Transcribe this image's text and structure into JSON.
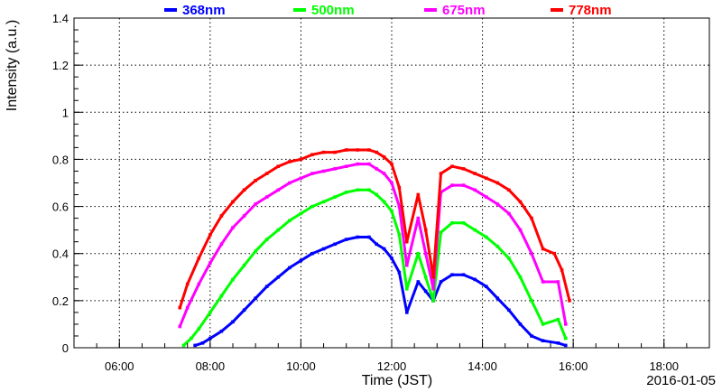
{
  "chart_data": {
    "type": "scatter",
    "title": "",
    "xlabel": "Time (JST)",
    "ylabel": "Intensity (a.u.)",
    "date": "2016-01-05",
    "xlim": [
      "05:00",
      "19:00"
    ],
    "ylim": [
      0,
      1.4
    ],
    "x_ticks": [
      "06:00",
      "08:00",
      "10:00",
      "12:00",
      "14:00",
      "16:00",
      "18:00"
    ],
    "y_ticks": [
      "0",
      "0.2",
      "0.4",
      "0.6",
      "0.8",
      "1",
      "1.2",
      "1.4"
    ],
    "grid": true,
    "legend_position": "top",
    "series": [
      {
        "name": "368nm",
        "color": "#0000ff",
        "points": [
          [
            "07:40",
            0.01
          ],
          [
            "07:50",
            0.02
          ],
          [
            "08:00",
            0.04
          ],
          [
            "08:15",
            0.07
          ],
          [
            "08:30",
            0.11
          ],
          [
            "08:45",
            0.16
          ],
          [
            "09:00",
            0.21
          ],
          [
            "09:15",
            0.26
          ],
          [
            "09:30",
            0.3
          ],
          [
            "09:45",
            0.34
          ],
          [
            "10:00",
            0.37
          ],
          [
            "10:15",
            0.4
          ],
          [
            "10:30",
            0.42
          ],
          [
            "10:45",
            0.44
          ],
          [
            "11:00",
            0.46
          ],
          [
            "11:15",
            0.47
          ],
          [
            "11:30",
            0.47
          ],
          [
            "11:40",
            0.44
          ],
          [
            "11:50",
            0.42
          ],
          [
            "12:00",
            0.38
          ],
          [
            "12:10",
            0.32
          ],
          [
            "12:20",
            0.15
          ],
          [
            "12:35",
            0.28
          ],
          [
            "12:45",
            0.24
          ],
          [
            "12:55",
            0.2
          ],
          [
            "13:05",
            0.28
          ],
          [
            "13:20",
            0.31
          ],
          [
            "13:35",
            0.31
          ],
          [
            "13:50",
            0.29
          ],
          [
            "14:05",
            0.26
          ],
          [
            "14:20",
            0.21
          ],
          [
            "14:35",
            0.16
          ],
          [
            "14:50",
            0.1
          ],
          [
            "15:05",
            0.05
          ],
          [
            "15:20",
            0.03
          ],
          [
            "15:40",
            0.02
          ],
          [
            "15:50",
            0.01
          ]
        ]
      },
      {
        "name": "500nm",
        "color": "#00ff00",
        "points": [
          [
            "07:25",
            0.01
          ],
          [
            "07:35",
            0.04
          ],
          [
            "07:45",
            0.08
          ],
          [
            "08:00",
            0.15
          ],
          [
            "08:15",
            0.22
          ],
          [
            "08:30",
            0.29
          ],
          [
            "08:45",
            0.35
          ],
          [
            "09:00",
            0.41
          ],
          [
            "09:15",
            0.46
          ],
          [
            "09:30",
            0.5
          ],
          [
            "09:45",
            0.54
          ],
          [
            "10:00",
            0.57
          ],
          [
            "10:15",
            0.6
          ],
          [
            "10:30",
            0.62
          ],
          [
            "10:45",
            0.64
          ],
          [
            "11:00",
            0.66
          ],
          [
            "11:15",
            0.67
          ],
          [
            "11:30",
            0.67
          ],
          [
            "11:40",
            0.65
          ],
          [
            "11:50",
            0.62
          ],
          [
            "12:00",
            0.58
          ],
          [
            "12:10",
            0.48
          ],
          [
            "12:20",
            0.25
          ],
          [
            "12:35",
            0.4
          ],
          [
            "12:45",
            0.3
          ],
          [
            "12:55",
            0.2
          ],
          [
            "13:05",
            0.49
          ],
          [
            "13:20",
            0.53
          ],
          [
            "13:35",
            0.53
          ],
          [
            "13:50",
            0.5
          ],
          [
            "14:05",
            0.47
          ],
          [
            "14:20",
            0.43
          ],
          [
            "14:35",
            0.38
          ],
          [
            "14:50",
            0.3
          ],
          [
            "15:05",
            0.2
          ],
          [
            "15:20",
            0.1
          ],
          [
            "15:40",
            0.12
          ],
          [
            "15:50",
            0.04
          ]
        ]
      },
      {
        "name": "675nm",
        "color": "#ff00ff",
        "points": [
          [
            "07:20",
            0.09
          ],
          [
            "07:30",
            0.17
          ],
          [
            "07:45",
            0.27
          ],
          [
            "08:00",
            0.36
          ],
          [
            "08:15",
            0.44
          ],
          [
            "08:30",
            0.51
          ],
          [
            "08:45",
            0.56
          ],
          [
            "09:00",
            0.61
          ],
          [
            "09:15",
            0.64
          ],
          [
            "09:30",
            0.67
          ],
          [
            "09:45",
            0.7
          ],
          [
            "10:00",
            0.72
          ],
          [
            "10:15",
            0.74
          ],
          [
            "10:30",
            0.75
          ],
          [
            "10:45",
            0.76
          ],
          [
            "11:00",
            0.77
          ],
          [
            "11:15",
            0.78
          ],
          [
            "11:30",
            0.78
          ],
          [
            "11:40",
            0.76
          ],
          [
            "11:50",
            0.74
          ],
          [
            "12:00",
            0.7
          ],
          [
            "12:10",
            0.6
          ],
          [
            "12:20",
            0.35
          ],
          [
            "12:35",
            0.55
          ],
          [
            "12:45",
            0.4
          ],
          [
            "12:55",
            0.25
          ],
          [
            "13:05",
            0.66
          ],
          [
            "13:20",
            0.69
          ],
          [
            "13:35",
            0.69
          ],
          [
            "13:50",
            0.67
          ],
          [
            "14:05",
            0.64
          ],
          [
            "14:20",
            0.61
          ],
          [
            "14:35",
            0.57
          ],
          [
            "14:50",
            0.5
          ],
          [
            "15:05",
            0.4
          ],
          [
            "15:20",
            0.28
          ],
          [
            "15:40",
            0.28
          ],
          [
            "15:50",
            0.1
          ]
        ]
      },
      {
        "name": "778nm",
        "color": "#ff0000",
        "points": [
          [
            "07:20",
            0.17
          ],
          [
            "07:30",
            0.27
          ],
          [
            "07:45",
            0.38
          ],
          [
            "08:00",
            0.48
          ],
          [
            "08:15",
            0.56
          ],
          [
            "08:30",
            0.62
          ],
          [
            "08:45",
            0.67
          ],
          [
            "09:00",
            0.71
          ],
          [
            "09:15",
            0.74
          ],
          [
            "09:30",
            0.77
          ],
          [
            "09:45",
            0.79
          ],
          [
            "10:00",
            0.8
          ],
          [
            "10:15",
            0.82
          ],
          [
            "10:30",
            0.83
          ],
          [
            "10:45",
            0.83
          ],
          [
            "11:00",
            0.84
          ],
          [
            "11:15",
            0.84
          ],
          [
            "11:30",
            0.84
          ],
          [
            "11:40",
            0.83
          ],
          [
            "11:50",
            0.81
          ],
          [
            "12:00",
            0.78
          ],
          [
            "12:10",
            0.68
          ],
          [
            "12:20",
            0.45
          ],
          [
            "12:35",
            0.65
          ],
          [
            "12:45",
            0.5
          ],
          [
            "12:55",
            0.3
          ],
          [
            "13:05",
            0.74
          ],
          [
            "13:20",
            0.77
          ],
          [
            "13:35",
            0.76
          ],
          [
            "13:50",
            0.74
          ],
          [
            "14:05",
            0.72
          ],
          [
            "14:20",
            0.7
          ],
          [
            "14:35",
            0.67
          ],
          [
            "14:50",
            0.62
          ],
          [
            "15:05",
            0.55
          ],
          [
            "15:20",
            0.42
          ],
          [
            "15:35",
            0.4
          ],
          [
            "15:45",
            0.33
          ],
          [
            "15:55",
            0.2
          ]
        ]
      }
    ]
  }
}
